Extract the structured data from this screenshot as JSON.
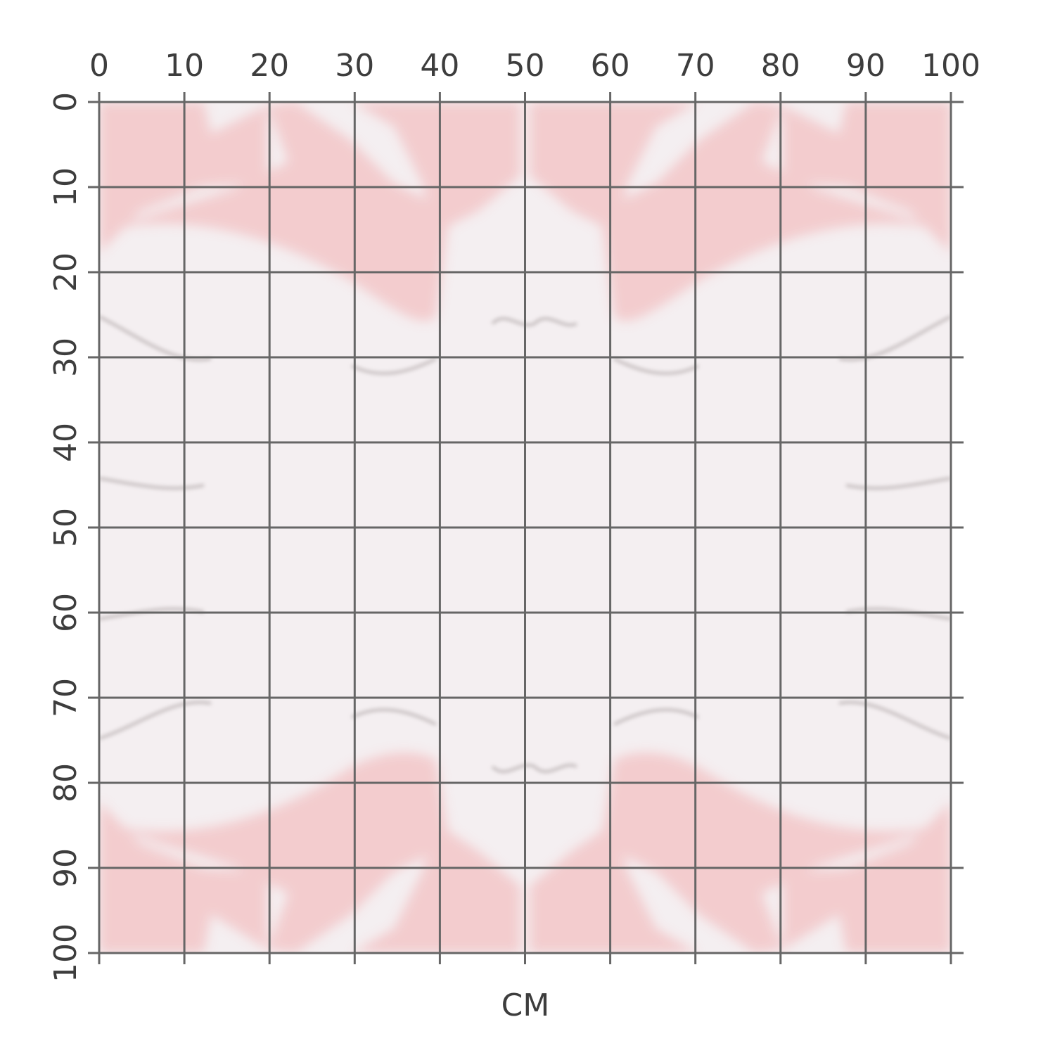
{
  "ruler": {
    "unit": "CM",
    "xlim": [
      0,
      100
    ],
    "xticks": [
      0,
      10,
      20,
      30,
      40,
      50,
      60,
      70,
      80,
      90,
      100
    ],
    "ylim": [
      0,
      100
    ],
    "yticks": [
      0,
      10,
      20,
      30,
      40,
      50,
      60,
      70,
      80,
      90,
      100
    ]
  }
}
